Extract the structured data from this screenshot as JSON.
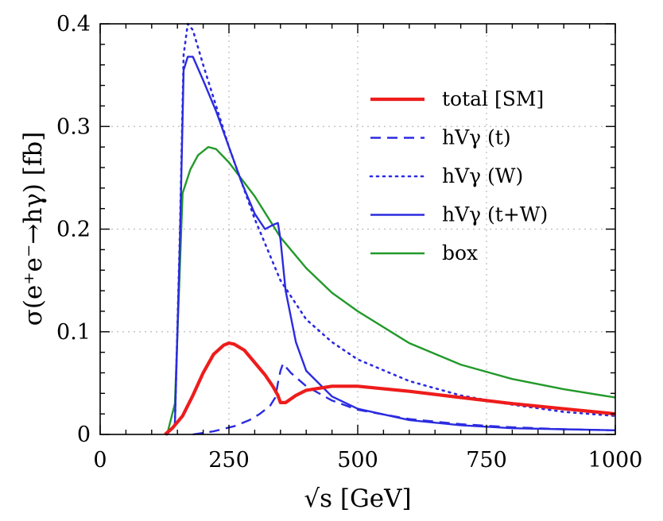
{
  "chart_data": {
    "type": "line",
    "title": "",
    "xlabel": "√s [GeV]",
    "ylabel": "σ(e⁺e⁻→hγ) [fb]",
    "xlim": [
      0,
      1000
    ],
    "ylim": [
      0,
      0.4
    ],
    "grid": true,
    "legend_position": "top-right",
    "x_ticks": [
      0,
      250,
      500,
      750,
      1000
    ],
    "x_tick_labels": [
      "0",
      "250",
      "500",
      "750",
      "1000"
    ],
    "y_ticks": [
      0,
      0.1,
      0.2,
      0.3,
      0.4
    ],
    "y_tick_labels": [
      "0",
      "0.1",
      "0.2",
      "0.3",
      "0.4"
    ],
    "series": [
      {
        "name": "total [SM]",
        "color": "#ee1c1c",
        "style": "solid-thick",
        "x": [
          126,
          140,
          160,
          180,
          200,
          220,
          240,
          250,
          260,
          280,
          300,
          320,
          335,
          345,
          350,
          360,
          380,
          400,
          450,
          500,
          600,
          700,
          800,
          900,
          1000
        ],
        "y": [
          0,
          0.006,
          0.018,
          0.038,
          0.06,
          0.078,
          0.087,
          0.089,
          0.088,
          0.082,
          0.07,
          0.058,
          0.047,
          0.038,
          0.031,
          0.031,
          0.038,
          0.043,
          0.047,
          0.047,
          0.042,
          0.036,
          0.03,
          0.025,
          0.02
        ]
      },
      {
        "name": "hVγ (t)",
        "color": "#2b2be0",
        "style": "dashed",
        "x": [
          180,
          220,
          260,
          290,
          310,
          330,
          340,
          345,
          350,
          355,
          370,
          400,
          450,
          500,
          600,
          700,
          800,
          900,
          1000
        ],
        "y": [
          0,
          0.003,
          0.008,
          0.014,
          0.02,
          0.028,
          0.036,
          0.05,
          0.062,
          0.069,
          0.06,
          0.047,
          0.033,
          0.024,
          0.015,
          0.01,
          0.007,
          0.005,
          0.004
        ]
      },
      {
        "name": "hVγ (W)",
        "color": "#2b2be0",
        "style": "dotted",
        "x": [
          130,
          145,
          155,
          162,
          170,
          180,
          200,
          225,
          250,
          300,
          350,
          400,
          450,
          500,
          600,
          700,
          800,
          900,
          1000
        ],
        "y": [
          0,
          0.01,
          0.2,
          0.37,
          0.4,
          0.394,
          0.36,
          0.32,
          0.28,
          0.21,
          0.15,
          0.112,
          0.09,
          0.073,
          0.052,
          0.038,
          0.029,
          0.022,
          0.018
        ]
      },
      {
        "name": "hVγ (t+W)",
        "color": "#2b2be0",
        "style": "solid",
        "x": [
          130,
          145,
          155,
          162,
          170,
          180,
          200,
          225,
          250,
          275,
          300,
          320,
          335,
          345,
          350,
          360,
          380,
          400,
          450,
          500,
          600,
          700,
          800,
          900,
          1000
        ],
        "y": [
          0,
          0.01,
          0.19,
          0.355,
          0.368,
          0.368,
          0.345,
          0.315,
          0.28,
          0.245,
          0.215,
          0.2,
          0.204,
          0.206,
          0.19,
          0.14,
          0.09,
          0.062,
          0.037,
          0.025,
          0.014,
          0.009,
          0.006,
          0.005,
          0.004
        ]
      },
      {
        "name": "box",
        "color": "#22992a",
        "style": "solid",
        "x": [
          130,
          145,
          160,
          175,
          190,
          210,
          225,
          250,
          300,
          350,
          400,
          450,
          500,
          600,
          700,
          800,
          900,
          1000
        ],
        "y": [
          0,
          0.03,
          0.235,
          0.258,
          0.272,
          0.28,
          0.278,
          0.265,
          0.232,
          0.192,
          0.162,
          0.138,
          0.12,
          0.089,
          0.068,
          0.054,
          0.044,
          0.036
        ]
      }
    ]
  }
}
